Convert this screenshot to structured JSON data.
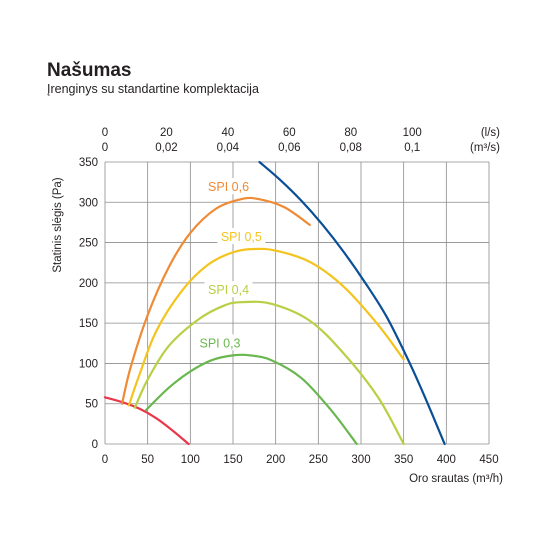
{
  "title": "Našumas",
  "subtitle": "Įrenginys su standartine komplektacija",
  "chart_data": {
    "type": "line",
    "xlabel": "Oro srautas (m³/h)",
    "ylabel": "Statinis slėgis (Pa)",
    "top_axis_label_1": "(l/s)",
    "top_axis_label_2": "(m³/s)",
    "xlim": [
      0,
      450
    ],
    "ylim": [
      0,
      350
    ],
    "xticks": [
      "0",
      "50",
      "100",
      "150",
      "200",
      "250",
      "300",
      "350",
      "400",
      "450"
    ],
    "yticks": [
      "0",
      "50",
      "100",
      "150",
      "200",
      "250",
      "300",
      "350"
    ],
    "top_ticks_ls": [
      "0",
      "20",
      "40",
      "60",
      "80",
      "100"
    ],
    "top_ticks_m3s": [
      "0",
      "0,02",
      "0,04",
      "0,06",
      "0,08",
      "0,1"
    ],
    "grid": true,
    "series": [
      {
        "name": "",
        "color": "#0a4f96",
        "x": [
          181,
          205,
          230,
          255,
          280,
          305,
          330,
          355,
          375,
          398
        ],
        "y": [
          350,
          328,
          302,
          272,
          238,
          200,
          158,
          105,
          58,
          0
        ]
      },
      {
        "name": "",
        "color": "#e8374b",
        "x": [
          0,
          20,
          40,
          60,
          80,
          98
        ],
        "y": [
          58,
          52,
          44,
          32,
          16,
          0
        ]
      },
      {
        "name": "SPI 0,6",
        "color": "#ef8a35",
        "x": [
          20,
          30,
          50,
          75,
          100,
          130,
          160,
          180,
          210,
          240
        ],
        "y": [
          50,
          95,
          160,
          220,
          262,
          292,
          304,
          304,
          294,
          272
        ]
      },
      {
        "name": "SPI 0,5",
        "color": "#f4c41e",
        "x": [
          28,
          40,
          60,
          90,
          120,
          150,
          175,
          200,
          240,
          280,
          320,
          350
        ],
        "y": [
          48,
          85,
          140,
          190,
          222,
          238,
          242,
          240,
          226,
          195,
          148,
          105
        ]
      },
      {
        "name": "SPI 0,4",
        "color": "#b7d044",
        "x": [
          35,
          50,
          75,
          110,
          140,
          160,
          195,
          240,
          280,
          320,
          350
        ],
        "y": [
          45,
          80,
          122,
          155,
          172,
          176,
          174,
          153,
          112,
          58,
          0
        ]
      },
      {
        "name": "SPI 0,3",
        "color": "#6ab750",
        "x": [
          48,
          75,
          100,
          125,
          150,
          170,
          195,
          230,
          265,
          295
        ],
        "y": [
          42,
          70,
          90,
          104,
          110,
          110,
          104,
          82,
          42,
          0
        ]
      }
    ]
  }
}
